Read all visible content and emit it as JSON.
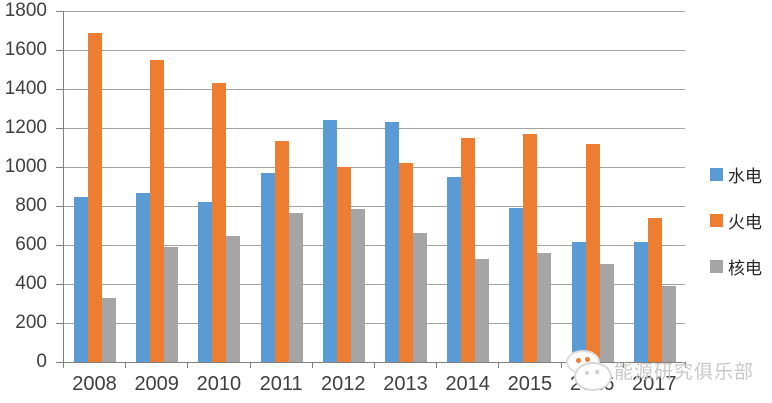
{
  "chart_data": {
    "type": "bar",
    "title": "",
    "categories": [
      "2008",
      "2009",
      "2010",
      "2011",
      "2012",
      "2013",
      "2014",
      "2015",
      "2016",
      "2017"
    ],
    "series": [
      {
        "name": "水电",
        "color": "#5B9BD5",
        "values": [
          845,
          865,
          820,
          970,
          1240,
          1230,
          950,
          790,
          615,
          615
        ]
      },
      {
        "name": "火电",
        "color": "#ED7D31",
        "values": [
          1685,
          1550,
          1430,
          1135,
          1000,
          1020,
          1150,
          1170,
          1120,
          740
        ]
      },
      {
        "name": "核电",
        "color": "#A5A5A5",
        "values": [
          330,
          590,
          645,
          765,
          785,
          660,
          530,
          560,
          505,
          390
        ]
      }
    ],
    "ylim": [
      0,
      1800
    ],
    "ytick_step": 200,
    "yticks": [
      "0",
      "200",
      "400",
      "600",
      "800",
      "1000",
      "1200",
      "1400",
      "1600",
      "1800"
    ],
    "grid": true,
    "legend_position": "right"
  },
  "watermark": {
    "text": "能源研究俱乐部",
    "logo": "wechat-chat-bubbles-icon"
  },
  "colors": {
    "axis": "#808080",
    "gridline": "#A3A3A3",
    "tick_label": "#3F3F3F",
    "watermark_text": "#C9C9C9",
    "background": "#FFFFFF"
  }
}
